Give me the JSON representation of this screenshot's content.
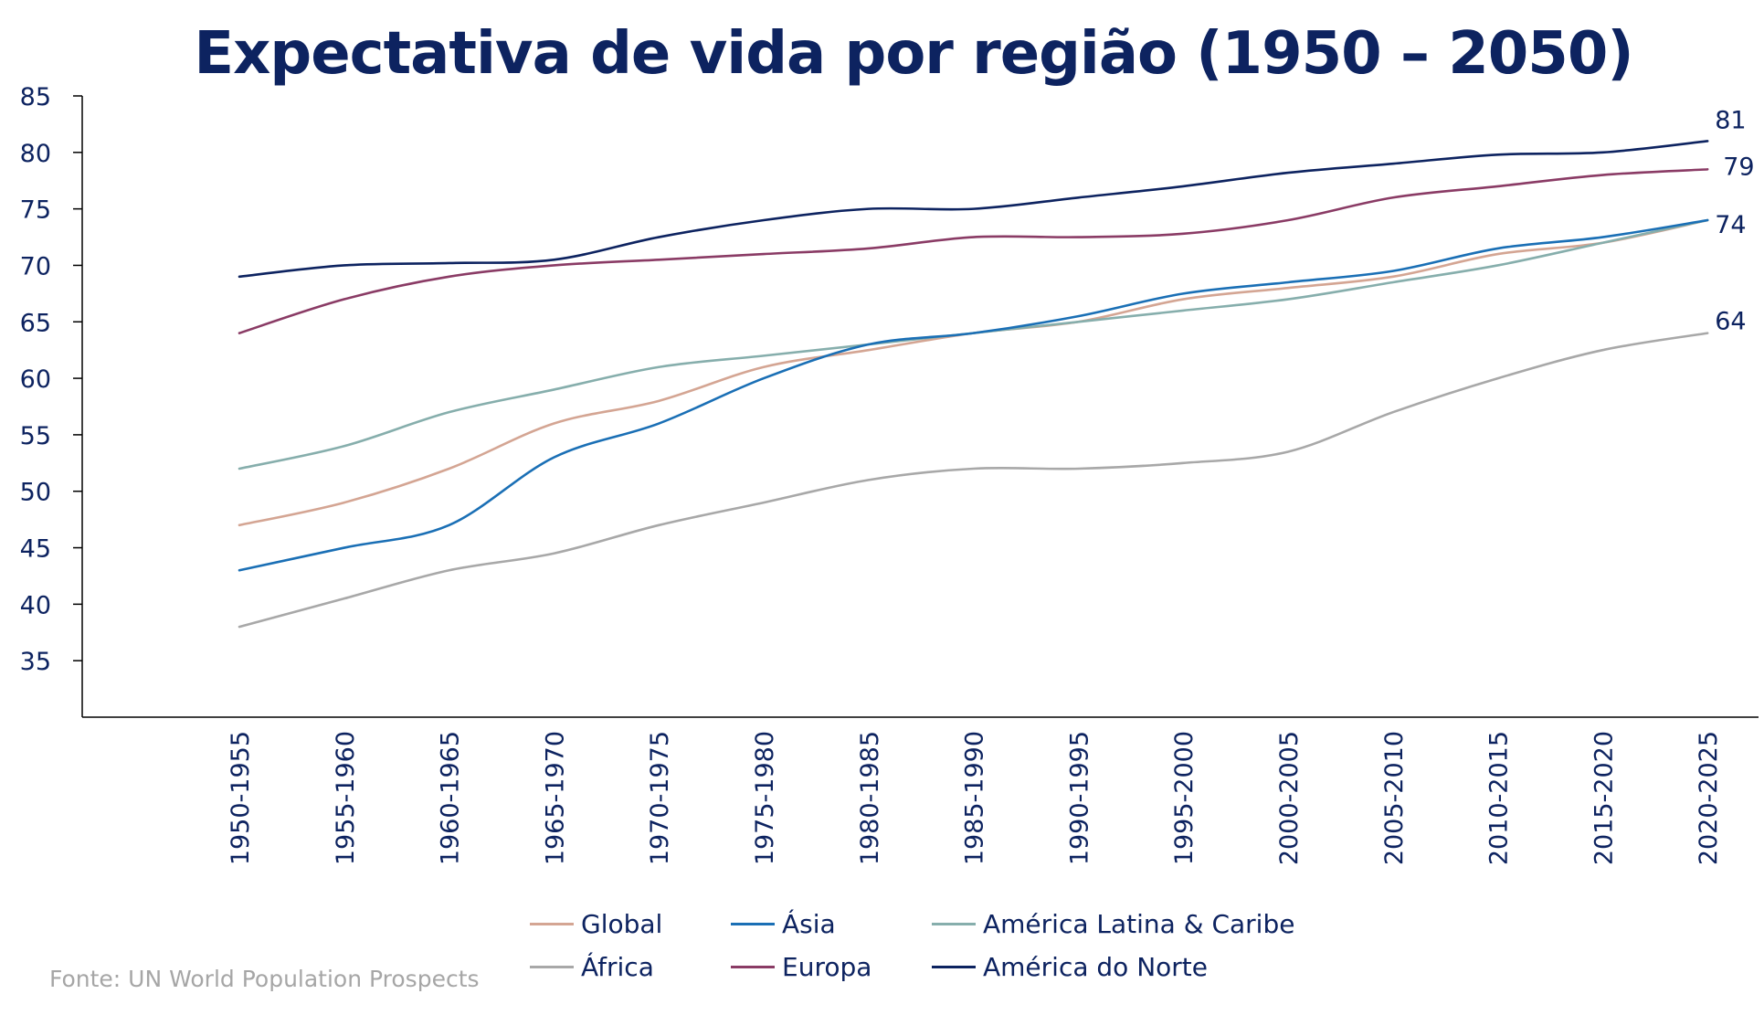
{
  "chart_data": {
    "type": "line",
    "title": "Expectativa de vida por região (1950 – 2050)",
    "xlabel": "",
    "ylabel": "",
    "ylim": [
      30,
      85
    ],
    "yticks": [
      35,
      40,
      45,
      50,
      55,
      60,
      65,
      70,
      75,
      80,
      85
    ],
    "categories": [
      "1950-1955",
      "1955-1960",
      "1960-1965",
      "1965-1970",
      "1970-1975",
      "1975-1980",
      "1980-1985",
      "1985-1990",
      "1990-1995",
      "1995-2000",
      "2000-2005",
      "2005-2010",
      "2010-2015",
      "2015-2020",
      "2020-2025"
    ],
    "series": [
      {
        "name": "Global",
        "color": "#d4a593",
        "values": [
          47,
          49,
          52,
          56,
          58,
          61,
          62.5,
          64,
          65,
          67,
          68,
          69,
          71,
          72,
          74
        ]
      },
      {
        "name": "Ásia",
        "color": "#1a6fb5",
        "values": [
          43,
          45,
          47,
          53,
          56,
          60,
          63,
          64,
          65.5,
          67.5,
          68.5,
          69.5,
          71.5,
          72.5,
          74
        ]
      },
      {
        "name": "América Latina & Caribe",
        "color": "#86aeac",
        "values": [
          52,
          54,
          57,
          59,
          61,
          62,
          63,
          64,
          65,
          66,
          67,
          68.5,
          70,
          72,
          74
        ]
      },
      {
        "name": "África",
        "color": "#a8a8a8",
        "values": [
          38,
          40.5,
          43,
          44.5,
          47,
          49,
          51,
          52,
          52,
          52.5,
          53.5,
          57,
          60,
          62.5,
          64
        ]
      },
      {
        "name": "Europa",
        "color": "#8a3b65",
        "values": [
          64,
          67,
          69,
          70,
          70.5,
          71,
          71.5,
          72.5,
          72.5,
          72.8,
          74,
          76,
          77,
          78,
          78.5
        ]
      },
      {
        "name": "América do Norte",
        "color": "#0d2360",
        "values": [
          69,
          70,
          70.2,
          70.5,
          72.5,
          74,
          75,
          75,
          76,
          77,
          78.2,
          79,
          79.8,
          80,
          81
        ]
      }
    ],
    "end_labels": [
      {
        "series": "América do Norte",
        "text": "81"
      },
      {
        "series": "Europa",
        "text": "79"
      },
      {
        "series": "Ásia",
        "text": "74"
      },
      {
        "series": "África",
        "text": "64"
      }
    ],
    "legend_position": "bottom",
    "grid": false
  },
  "legend": {
    "rows": [
      [
        "Global",
        "Ásia",
        "América Latina & Caribe"
      ],
      [
        "África",
        "Europa",
        "América do Norte"
      ]
    ]
  },
  "source": "Fonte: UN World Population Prospects"
}
